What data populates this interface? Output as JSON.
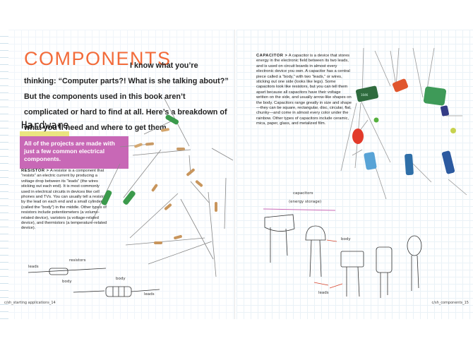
{
  "left": {
    "title": "COMPONENTS",
    "intro": "I know what you’re thinking: “Computer parts?! What is she talking about?” But the components used in this book aren’t complicated or hard to find at all. Here’s a breakdown of what you’ll need and where to get them.",
    "hardware": "Hardware",
    "callout": "All of the projects are made with just a few common electrical components.",
    "resistor_label": "RESISTOR >",
    "resistor_text": " A resistor is a component that “resists” an electric current by producing a voltage drop between its “leads” (the wires sticking out each end). It is most commonly used in electrical circuits in devices like cell phones and TVs. You can usually tell a resistor by the lead on each end and a small cylinder (called the “body”) in the middle. Other types of resistors include potentiometers (a volume-related device), varistors (a voltage-related device), and thermistors (a temperature-related device).",
    "sketch_title": "resistors",
    "sketch_leads": "leads",
    "sketch_body": "body",
    "sketch_body2": "body",
    "sketch_leads2": "leads",
    "footer": "c/sh_starting applications_14"
  },
  "right": {
    "capacitor_label": "CAPACITOR >",
    "capacitor_text": " A capacitor is a device that stores energy in the electronic field between its two leads, and is used on circuit boards in almost every electronic device you own. A capacitor has a central piece called a “body,” with two “leads,” or wires, sticking out one side (looks like legs). Some capacitors look like resistors, but you can tell them apart because all capacitors have their voltage written on the side, and usually arrow-like shapes on the body. Capacitors range greatly in size and shape—they can be square, rectangular, disc, circular, flat, chunky—and come in almost every color under the rainbow. Other types of capacitors include ceramic, mica, paper, glass, and metalized film.",
    "sketch_title": "capacitors",
    "sketch_sub": "(energy storage)",
    "sketch_body": "body",
    "sketch_leads": "leads",
    "footer": "c/sh_components_15"
  },
  "colors": {
    "accent": "#f26b3a",
    "callout": "#c868b6",
    "highlight": "#e8e06a",
    "grid": "#eaf2f8"
  }
}
